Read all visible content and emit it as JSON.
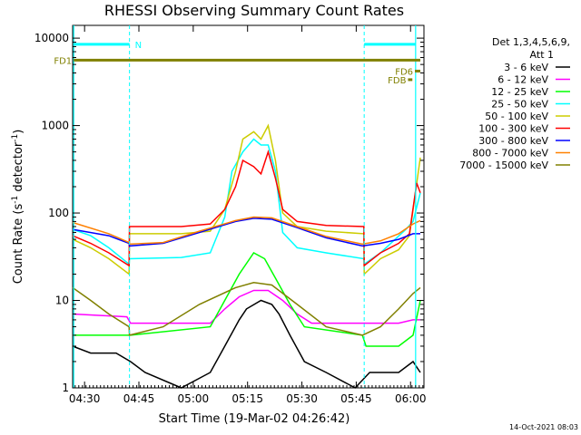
{
  "chart_data": {
    "type": "line",
    "title": "RHESSI Observing Summary Count Rates",
    "xlabel": "Start Time (19-Mar-02 04:26:42)",
    "ylabel_main": "Count Rate (s",
    "ylabel_sup1": "-1",
    "ylabel_mid": " detector",
    "ylabel_sup2": "-1",
    "ylabel_end": ")",
    "yscale": "log",
    "ylim": [
      1,
      14000
    ],
    "x_unit": "minutes since 04:26:42",
    "xlim": [
      0,
      97
    ],
    "x_ticks": [
      {
        "label": "04:30",
        "x": 3.3
      },
      {
        "label": "04:45",
        "x": 18.3
      },
      {
        "label": "05:00",
        "x": 33.3
      },
      {
        "label": "05:15",
        "x": 48.3
      },
      {
        "label": "05:30",
        "x": 63.3
      },
      {
        "label": "05:45",
        "x": 78.3
      },
      {
        "label": "06:00",
        "x": 93.3
      }
    ],
    "y_ticks": [
      {
        "label": "1",
        "y": 1
      },
      {
        "label": "10",
        "y": 10
      },
      {
        "label": "100",
        "y": 100
      },
      {
        "label": "1000",
        "y": 1000
      },
      {
        "label": "10000",
        "y": 10000
      }
    ],
    "legend_header": [
      "Det 1,3,4,5,6,9,",
      "Att 1"
    ],
    "legend_position": "right",
    "attenuator_change_times": [
      15.7,
      80.5
    ],
    "night_boundaries": [
      0.3,
      94.7
    ],
    "series": [
      {
        "name": "3 - 6 keV",
        "color": "#000000",
        "points": [
          [
            0,
            3
          ],
          [
            5,
            2.5
          ],
          [
            12,
            2.5
          ],
          [
            16,
            2
          ],
          [
            20,
            1.5
          ],
          [
            30,
            1
          ],
          [
            38,
            1.5
          ],
          [
            42,
            3
          ],
          [
            46,
            6
          ],
          [
            48,
            8
          ],
          [
            52,
            10
          ],
          [
            55,
            9
          ],
          [
            57,
            7
          ],
          [
            60,
            4
          ],
          [
            64,
            2
          ],
          [
            70,
            1.5
          ],
          [
            78,
            1
          ],
          [
            82,
            1.5
          ],
          [
            90,
            1.5
          ],
          [
            94,
            2
          ],
          [
            96,
            1.5
          ]
        ]
      },
      {
        "name": "6 - 12 keV",
        "color": "#ff00ff",
        "points": [
          [
            0,
            7
          ],
          [
            15,
            6.5
          ],
          [
            16,
            5.5
          ],
          [
            38,
            5.5
          ],
          [
            42,
            8
          ],
          [
            46,
            11
          ],
          [
            50,
            13
          ],
          [
            54,
            13
          ],
          [
            58,
            10
          ],
          [
            62,
            7
          ],
          [
            66,
            5.5
          ],
          [
            80,
            5.5
          ],
          [
            81,
            5.5
          ],
          [
            90,
            5.5
          ],
          [
            94,
            6
          ],
          [
            96,
            6
          ]
        ]
      },
      {
        "name": "12 - 25 keV",
        "color": "#00ff00",
        "points": [
          [
            0,
            4
          ],
          [
            15,
            4
          ],
          [
            16,
            4
          ],
          [
            38,
            5
          ],
          [
            42,
            10
          ],
          [
            46,
            20
          ],
          [
            50,
            35
          ],
          [
            53,
            30
          ],
          [
            56,
            18
          ],
          [
            60,
            9
          ],
          [
            64,
            5
          ],
          [
            80,
            4
          ],
          [
            81,
            3
          ],
          [
            90,
            3
          ],
          [
            94,
            4
          ],
          [
            96,
            10
          ]
        ]
      },
      {
        "name": "25 - 50 keV",
        "color": "#00ffff",
        "points": [
          [
            0,
            65
          ],
          [
            5,
            55
          ],
          [
            10,
            40
          ],
          [
            15.6,
            26
          ],
          [
            15.7,
            30
          ],
          [
            30,
            31
          ],
          [
            38,
            35
          ],
          [
            42,
            90
          ],
          [
            44,
            300
          ],
          [
            47,
            500
          ],
          [
            50,
            700
          ],
          [
            52,
            600
          ],
          [
            54,
            600
          ],
          [
            56,
            300
          ],
          [
            58,
            60
          ],
          [
            62,
            40
          ],
          [
            70,
            35
          ],
          [
            80.4,
            30
          ],
          [
            80.5,
            26
          ],
          [
            85,
            35
          ],
          [
            92,
            65
          ],
          [
            94,
            80
          ],
          [
            96,
            170
          ]
        ]
      },
      {
        "name": "50 - 100 keV",
        "color": "#cccc00",
        "points": [
          [
            0,
            50
          ],
          [
            5,
            40
          ],
          [
            10,
            30
          ],
          [
            15.6,
            20
          ],
          [
            15.7,
            58
          ],
          [
            30,
            58
          ],
          [
            38,
            62
          ],
          [
            42,
            110
          ],
          [
            45,
            300
          ],
          [
            47,
            700
          ],
          [
            50,
            850
          ],
          [
            52,
            700
          ],
          [
            54,
            1000
          ],
          [
            56,
            400
          ],
          [
            58,
            100
          ],
          [
            62,
            70
          ],
          [
            70,
            62
          ],
          [
            80.4,
            58
          ],
          [
            80.5,
            20
          ],
          [
            85,
            30
          ],
          [
            90,
            38
          ],
          [
            93,
            55
          ],
          [
            96,
            430
          ]
        ]
      },
      {
        "name": "100 - 300 keV",
        "color": "#ff0000",
        "points": [
          [
            0,
            55
          ],
          [
            5,
            45
          ],
          [
            10,
            35
          ],
          [
            15.6,
            25
          ],
          [
            15.7,
            70
          ],
          [
            30,
            70
          ],
          [
            38,
            75
          ],
          [
            42,
            110
          ],
          [
            45,
            200
          ],
          [
            47,
            400
          ],
          [
            50,
            340
          ],
          [
            52,
            280
          ],
          [
            54,
            500
          ],
          [
            56,
            250
          ],
          [
            58,
            110
          ],
          [
            62,
            80
          ],
          [
            70,
            72
          ],
          [
            80.4,
            70
          ],
          [
            80.5,
            25
          ],
          [
            85,
            35
          ],
          [
            90,
            45
          ],
          [
            93,
            58
          ],
          [
            95,
            220
          ],
          [
            96,
            170
          ]
        ]
      },
      {
        "name": "300 - 800 keV",
        "color": "#0000ff",
        "points": [
          [
            0,
            65
          ],
          [
            10,
            55
          ],
          [
            15.6,
            45
          ],
          [
            15.7,
            42
          ],
          [
            25,
            45
          ],
          [
            35,
            60
          ],
          [
            45,
            80
          ],
          [
            50,
            87
          ],
          [
            55,
            85
          ],
          [
            62,
            68
          ],
          [
            70,
            52
          ],
          [
            80,
            42
          ],
          [
            85,
            45
          ],
          [
            90,
            50
          ],
          [
            94,
            58
          ],
          [
            96,
            58
          ]
        ]
      },
      {
        "name": "800 - 7000 keV",
        "color": "#ff8000",
        "points": [
          [
            0,
            78
          ],
          [
            10,
            58
          ],
          [
            15.6,
            46
          ],
          [
            15.7,
            44
          ],
          [
            25,
            46
          ],
          [
            35,
            62
          ],
          [
            45,
            82
          ],
          [
            50,
            90
          ],
          [
            55,
            88
          ],
          [
            62,
            70
          ],
          [
            70,
            54
          ],
          [
            80,
            44
          ],
          [
            85,
            48
          ],
          [
            90,
            58
          ],
          [
            94,
            75
          ],
          [
            96,
            82
          ]
        ]
      },
      {
        "name": "7000 - 15000 keV",
        "color": "#808000",
        "points": [
          [
            0,
            14
          ],
          [
            5,
            10
          ],
          [
            10,
            7
          ],
          [
            15.6,
            5
          ],
          [
            15.7,
            4
          ],
          [
            25,
            5
          ],
          [
            35,
            9
          ],
          [
            45,
            14
          ],
          [
            50,
            16
          ],
          [
            55,
            15
          ],
          [
            62,
            9
          ],
          [
            70,
            5
          ],
          [
            80,
            4
          ],
          [
            85,
            5
          ],
          [
            90,
            8
          ],
          [
            94,
            12
          ],
          [
            96,
            14
          ]
        ]
      }
    ],
    "flags": [
      {
        "label": "N",
        "color": "#00ffff",
        "y": 8500,
        "segments": [
          [
            0.3,
            15.7
          ],
          [
            80.5,
            94.7
          ]
        ]
      },
      {
        "label": "FD1",
        "color": "#808000",
        "y": 5600,
        "segments": [
          [
            0.3,
            96
          ]
        ]
      },
      {
        "label": "FD6",
        "color": "#808000",
        "y": 4200,
        "segments": [
          [
            94.5,
            96
          ]
        ]
      },
      {
        "label": "FDB",
        "color": "#808000",
        "y": 3350,
        "segments": [
          [
            92.6,
            93.8
          ]
        ]
      }
    ]
  },
  "footer": {
    "timestamp": "14-Oct-2021 08:03"
  }
}
